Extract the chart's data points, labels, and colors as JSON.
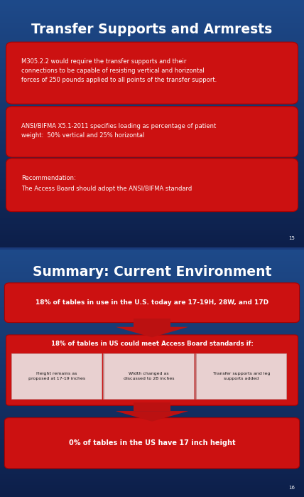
{
  "slide1": {
    "title": "Transfer Supports and Armrests",
    "bg_top": "#1e4a8a",
    "bg_mid": "#1a3a7a",
    "bg_bottom": "#0d1f4a",
    "slide_num": "15",
    "box1_text": "M305.2.2 would require the transfer supports and their\nconnections to be capable of resisting vertical and horizontal\nforces of 250 pounds applied to all points of the transfer support.",
    "box2_text": "ANSI/BIFMA X5.1-2011 specifies loading as percentage of patient\nweight:  50% vertical and 25% horizontal",
    "box3_text": "Recommendation:\nThe Access Board should adopt the ANSI/BIFMA standard",
    "red": "#cc1111",
    "red_dark": "#aa0000"
  },
  "slide2": {
    "title": "Summary: Current Environment",
    "bg_top": "#1e4a8a",
    "bg_mid": "#1a3a7a",
    "bg_bottom": "#0d1f4a",
    "slide_num": "16",
    "box1_text": "18% of tables in use in the U.S. today are 17-19H, 28W, and 17D",
    "box2_header": "18% of tables in US could meet Access Board standards if:",
    "box2_cols": [
      "Height remains as\nproposed at 17-19 inches",
      "Width changed as\ndiscussed to 28 inches",
      "Transfer supports and leg\nsupports added"
    ],
    "box3_text": "0% of tables in the US have 17 inch height",
    "red": "#cc1111",
    "red_dark": "#aa0000",
    "col_bg": "#e8d0d0",
    "arrow_red": "#bb1111"
  }
}
